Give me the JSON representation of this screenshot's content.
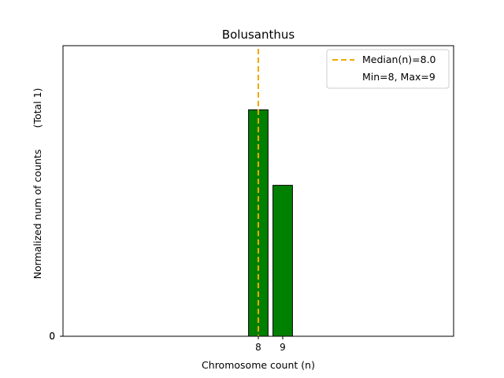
{
  "chart_data": {
    "type": "bar",
    "title": "Bolusanthus",
    "xlabel": "Chromosome count (n)",
    "ylabel": "Normalized num of counts",
    "ylabel_right": "(Total 1)",
    "categories": [
      "8",
      "9"
    ],
    "x": [
      8,
      9
    ],
    "values": [
      0.6,
      0.4
    ],
    "xlim": [
      0,
      16
    ],
    "ylim": [
      0,
      0.77
    ],
    "yticks": [
      0,
      0
    ],
    "ytick_labels": [
      "0",
      "0"
    ],
    "bar_color": "#008000",
    "bar_edge_color": "#000000",
    "median": {
      "value": 8.0,
      "color": "#f0a800",
      "style": "dashed",
      "label": "Median(n)=8.0"
    },
    "range_label": "Min=8, Max=9",
    "legend_position": "top-right",
    "grid": false
  }
}
